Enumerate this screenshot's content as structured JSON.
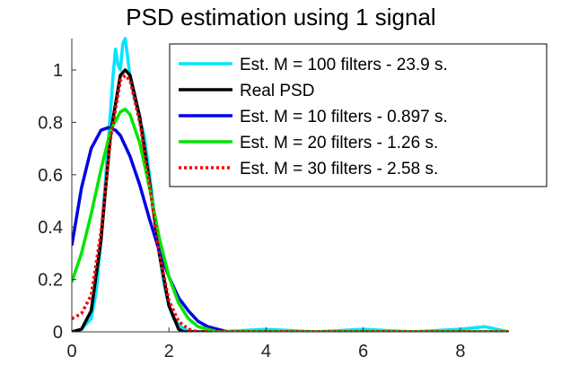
{
  "chart_data": {
    "type": "line",
    "title": "PSD estimation using 1 signal",
    "xlabel": "",
    "ylabel": "",
    "xlim": [
      0,
      9
    ],
    "ylim": [
      0,
      1.12
    ],
    "xticks": [
      0,
      2,
      4,
      6,
      8
    ],
    "yticks": [
      0,
      0.2,
      0.4,
      0.6,
      0.8,
      1
    ],
    "grid": false,
    "legend_position": "top-right",
    "series": [
      {
        "name": "Est. M = 100 filters - 23.9 s.",
        "color": "#00e5ff",
        "style": "solid",
        "x": [
          0,
          0.2,
          0.4,
          0.5,
          0.6,
          0.7,
          0.8,
          0.85,
          0.9,
          0.95,
          1.0,
          1.05,
          1.1,
          1.15,
          1.2,
          1.25,
          1.3,
          1.35,
          1.4,
          1.45,
          1.5,
          1.6,
          1.7,
          1.8,
          1.9,
          2.0,
          2.1,
          2.2,
          2.3,
          2.5,
          3.0,
          4.0,
          5.0,
          6.0,
          7.0,
          8.0,
          8.5,
          9.0
        ],
        "values": [
          0.0,
          0.01,
          0.05,
          0.15,
          0.35,
          0.6,
          0.85,
          0.98,
          1.08,
          1.02,
          1.0,
          1.1,
          1.12,
          1.05,
          0.97,
          0.93,
          0.88,
          0.85,
          0.8,
          0.78,
          0.74,
          0.6,
          0.45,
          0.3,
          0.18,
          0.1,
          0.05,
          0.03,
          0.01,
          0.0,
          0.0,
          0.01,
          0.0,
          0.01,
          0.0,
          0.01,
          0.02,
          0.0
        ]
      },
      {
        "name": "Real PSD",
        "color": "#000000",
        "style": "solid",
        "x": [
          0,
          0.2,
          0.4,
          0.6,
          0.8,
          1.0,
          1.1,
          1.2,
          1.4,
          1.6,
          1.8,
          2.0,
          2.2,
          2.3,
          2.5,
          3.0,
          9.0
        ],
        "values": [
          0.0,
          0.01,
          0.08,
          0.35,
          0.76,
          0.98,
          1.0,
          0.98,
          0.82,
          0.57,
          0.3,
          0.1,
          0.01,
          0.0,
          0.0,
          0.0,
          0.0
        ]
      },
      {
        "name": "Est. M = 10 filters - 0.897 s.",
        "color": "#0000e6",
        "style": "solid",
        "x": [
          0,
          0.2,
          0.4,
          0.6,
          0.75,
          0.9,
          1.0,
          1.2,
          1.4,
          1.6,
          1.8,
          2.0,
          2.2,
          2.4,
          2.6,
          2.8,
          3.0,
          3.2,
          3.5,
          9.0
        ],
        "values": [
          0.33,
          0.55,
          0.7,
          0.77,
          0.78,
          0.77,
          0.75,
          0.67,
          0.56,
          0.43,
          0.31,
          0.21,
          0.13,
          0.08,
          0.04,
          0.02,
          0.01,
          0.0,
          0.0,
          0.0
        ]
      },
      {
        "name": "Est. M = 20 filters - 1.26 s.",
        "color": "#00e600",
        "style": "solid",
        "x": [
          0,
          0.2,
          0.4,
          0.6,
          0.8,
          1.0,
          1.1,
          1.2,
          1.4,
          1.6,
          1.8,
          2.0,
          2.2,
          2.4,
          2.6,
          2.8,
          3.0,
          3.2,
          9.0
        ],
        "values": [
          0.19,
          0.3,
          0.45,
          0.62,
          0.77,
          0.84,
          0.85,
          0.83,
          0.72,
          0.55,
          0.36,
          0.21,
          0.11,
          0.05,
          0.02,
          0.01,
          0.0,
          0.0,
          0.0
        ]
      },
      {
        "name": "Est. M = 30 filters - 2.58 s.",
        "color": "#ff0000",
        "style": "dotted",
        "x": [
          0,
          0.2,
          0.4,
          0.6,
          0.8,
          1.0,
          1.1,
          1.2,
          1.4,
          1.6,
          1.8,
          2.0,
          2.2,
          2.4,
          2.6,
          3.0,
          9.0
        ],
        "values": [
          0.05,
          0.07,
          0.14,
          0.38,
          0.74,
          0.96,
          0.98,
          0.96,
          0.8,
          0.56,
          0.3,
          0.12,
          0.04,
          0.01,
          0.0,
          0.0,
          0.0
        ]
      }
    ]
  }
}
